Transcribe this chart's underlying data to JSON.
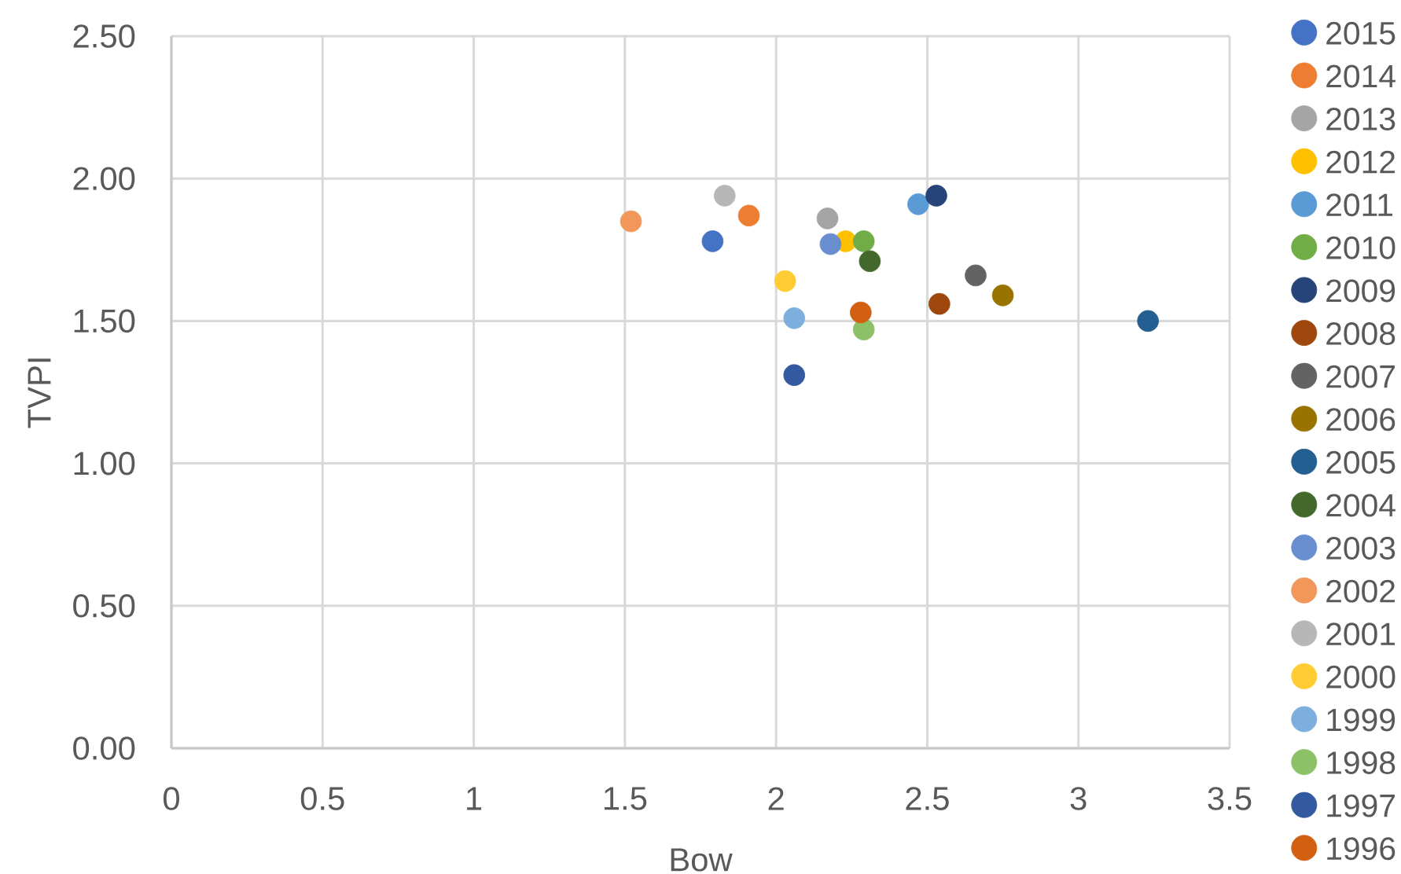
{
  "chart_data": {
    "type": "scatter",
    "xlabel": "Bow",
    "ylabel": "TVPI",
    "xlim": [
      0,
      3.5
    ],
    "ylim": [
      0,
      2.5
    ],
    "xticks": [
      0,
      0.5,
      1,
      1.5,
      2,
      2.5,
      3,
      3.5
    ],
    "yticks": [
      {
        "value": 0,
        "label": "0.00"
      },
      {
        "value": 0.5,
        "label": "0.50"
      },
      {
        "value": 1,
        "label": "1.00"
      },
      {
        "value": 1.5,
        "label": "1.50"
      },
      {
        "value": 2,
        "label": "2.00"
      },
      {
        "value": 2.5,
        "label": "2.50"
      }
    ],
    "grid": true,
    "legend": "right",
    "marker": "circle",
    "series": [
      {
        "name": "2015",
        "color": "#4472c4",
        "x": [
          1.79
        ],
        "values": [
          1.78
        ]
      },
      {
        "name": "2014",
        "color": "#ed7d31",
        "x": [
          1.91
        ],
        "values": [
          1.87
        ]
      },
      {
        "name": "2013",
        "color": "#a5a5a5",
        "x": [
          2.17
        ],
        "values": [
          1.86
        ]
      },
      {
        "name": "2012",
        "color": "#ffc000",
        "x": [
          2.23
        ],
        "values": [
          1.78
        ]
      },
      {
        "name": "2011",
        "color": "#5b9bd5",
        "x": [
          2.47
        ],
        "values": [
          1.91
        ]
      },
      {
        "name": "2010",
        "color": "#70ad47",
        "x": [
          2.29
        ],
        "values": [
          1.78
        ]
      },
      {
        "name": "2009",
        "color": "#264478",
        "x": [
          2.53
        ],
        "values": [
          1.94
        ]
      },
      {
        "name": "2008",
        "color": "#9e480e",
        "x": [
          2.54
        ],
        "values": [
          1.56
        ]
      },
      {
        "name": "2007",
        "color": "#636363",
        "x": [
          2.66
        ],
        "values": [
          1.66
        ]
      },
      {
        "name": "2006",
        "color": "#997300",
        "x": [
          2.75
        ],
        "values": [
          1.59
        ]
      },
      {
        "name": "2005",
        "color": "#255e91",
        "x": [
          3.23
        ],
        "values": [
          1.5
        ]
      },
      {
        "name": "2004",
        "color": "#43682b",
        "x": [
          2.31
        ],
        "values": [
          1.71
        ]
      },
      {
        "name": "2003",
        "color": "#698ed0",
        "x": [
          2.18
        ],
        "values": [
          1.77
        ]
      },
      {
        "name": "2002",
        "color": "#f1975a",
        "x": [
          1.52
        ],
        "values": [
          1.85
        ]
      },
      {
        "name": "2001",
        "color": "#b7b7b7",
        "x": [
          1.83
        ],
        "values": [
          1.94
        ]
      },
      {
        "name": "2000",
        "color": "#ffcd33",
        "x": [
          2.03
        ],
        "values": [
          1.64
        ]
      },
      {
        "name": "1999",
        "color": "#7cafdd",
        "x": [
          2.06
        ],
        "values": [
          1.51
        ]
      },
      {
        "name": "1998",
        "color": "#8cc168",
        "x": [
          2.29
        ],
        "values": [
          1.47
        ]
      },
      {
        "name": "1997",
        "color": "#335aa1",
        "x": [
          2.06
        ],
        "values": [
          1.31
        ]
      },
      {
        "name": "1996",
        "color": "#d26012",
        "x": [
          2.28
        ],
        "values": [
          1.53
        ]
      }
    ]
  }
}
